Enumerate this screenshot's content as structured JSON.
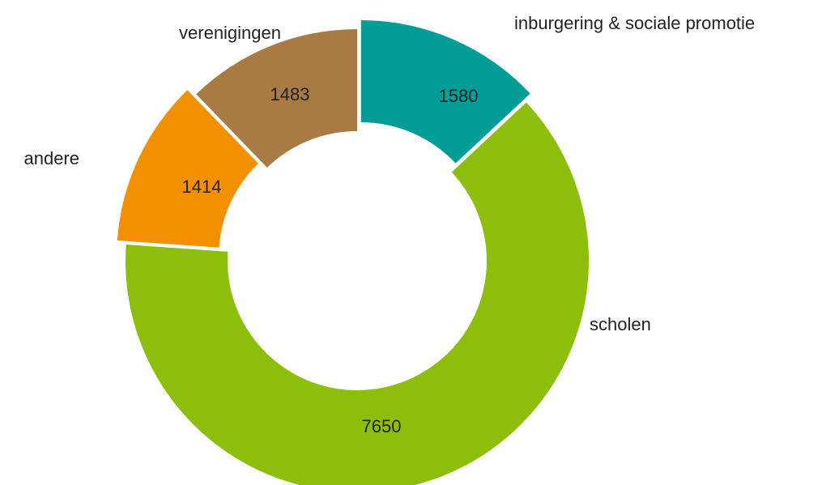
{
  "chart_data": {
    "type": "donut",
    "categories": [
      "inburgering & sociale promotie",
      "scholen",
      "andere",
      "verenigingen"
    ],
    "values": [
      1580,
      7650,
      1414,
      1483
    ],
    "colors": [
      "#009c96",
      "#8dbe0c",
      "#f39000",
      "#a87b45"
    ],
    "exploded": [
      true,
      false,
      true,
      false
    ]
  }
}
